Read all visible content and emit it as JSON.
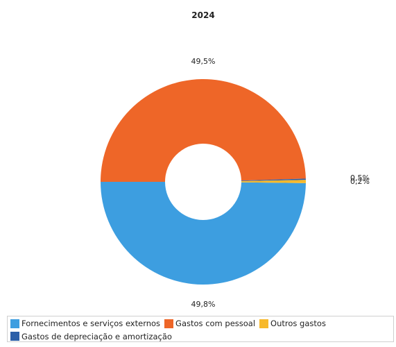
{
  "chart_data": {
    "type": "pie",
    "title": "2024",
    "categories": [
      "Fornecimentos e serviços externos",
      "Gastos com pessoal",
      "Outros gastos",
      "Gastos de depreciação e amortização"
    ],
    "values": [
      49.8,
      49.5,
      0.5,
      0.2
    ],
    "labels": [
      "49,8%",
      "49,5%",
      "0,5%",
      "0,2%"
    ],
    "colors": [
      "#3d9ee0",
      "#ee6628",
      "#f7b92b",
      "#2c5fa8"
    ],
    "donut": true,
    "legend_position": "bottom"
  }
}
